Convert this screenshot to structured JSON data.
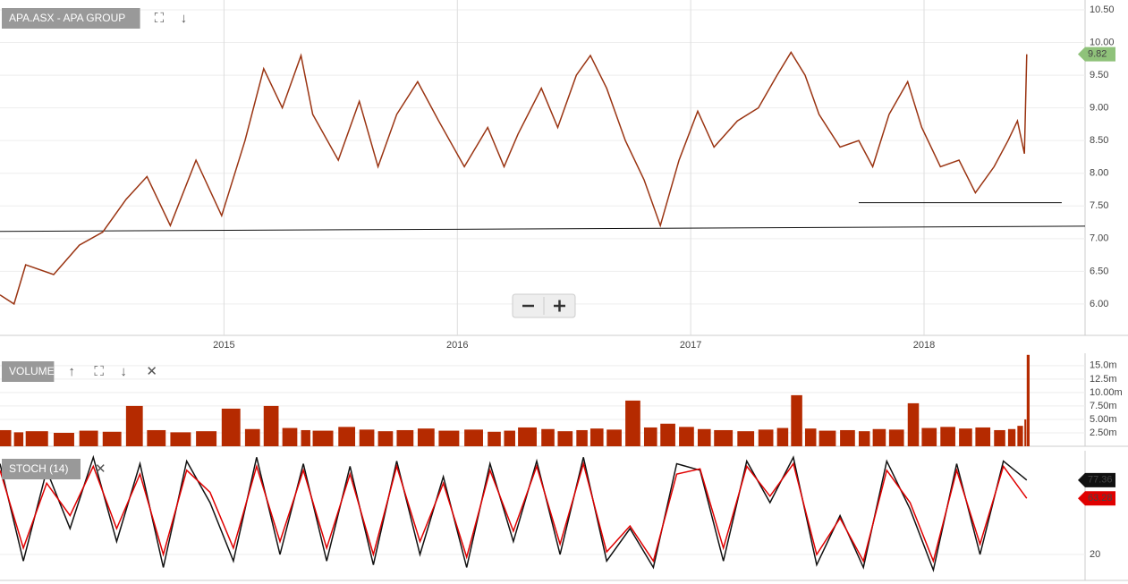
{
  "chart_data": [
    {
      "type": "line",
      "title": "APA.ASX - APA GROUP",
      "color": "#9a3412",
      "x": [
        2014.04,
        2014.1,
        2014.15,
        2014.27,
        2014.38,
        2014.48,
        2014.58,
        2014.67,
        2014.77,
        2014.88,
        2014.99,
        2015.09,
        2015.17,
        2015.25,
        2015.33,
        2015.38,
        2015.49,
        2015.58,
        2015.66,
        2015.74,
        2015.83,
        2015.92,
        2016.03,
        2016.13,
        2016.2,
        2016.26,
        2016.36,
        2016.43,
        2016.51,
        2016.57,
        2016.64,
        2016.72,
        2016.8,
        2016.87,
        2016.95,
        2017.03,
        2017.1,
        2017.2,
        2017.29,
        2017.37,
        2017.43,
        2017.49,
        2017.55,
        2017.64,
        2017.72,
        2017.78,
        2017.85,
        2017.93,
        2017.99,
        2018.07,
        2018.15,
        2018.22,
        2018.3,
        2018.36,
        2018.4,
        2018.43,
        2018.44
      ],
      "values": [
        6.14,
        6.0,
        6.6,
        6.45,
        6.9,
        7.1,
        7.6,
        7.95,
        7.2,
        8.2,
        7.35,
        8.5,
        9.6,
        9.0,
        9.8,
        8.9,
        8.2,
        9.1,
        8.1,
        8.9,
        9.4,
        8.8,
        8.1,
        8.7,
        8.1,
        8.6,
        9.3,
        8.7,
        9.5,
        9.8,
        9.3,
        8.5,
        7.9,
        7.2,
        8.2,
        8.95,
        8.4,
        8.8,
        9.0,
        9.5,
        9.85,
        9.5,
        8.9,
        8.4,
        8.5,
        8.1,
        8.9,
        9.4,
        8.7,
        8.1,
        8.2,
        7.7,
        8.1,
        8.5,
        8.8,
        8.3,
        9.82
      ],
      "lines": [
        {
          "x": [
            2014.04,
            2018.69
          ],
          "y": [
            7.11,
            7.19
          ]
        },
        {
          "x": [
            2017.72,
            2018.59
          ],
          "y": [
            7.55,
            7.55
          ]
        }
      ],
      "xlim": [
        2014.04,
        2018.69
      ],
      "xticks": [
        2015,
        2016,
        2017,
        2018
      ],
      "ylim": [
        5.52,
        10.65
      ],
      "yticks": [
        {
          "value": 6,
          "label": "6.00"
        },
        {
          "value": 6.5,
          "label": "6.50"
        },
        {
          "value": 7,
          "label": "7.00"
        },
        {
          "value": 7.5,
          "label": "7.50"
        },
        {
          "value": 8,
          "label": "8.00"
        },
        {
          "value": 8.5,
          "label": "8.50"
        },
        {
          "value": 9,
          "label": "9.00"
        },
        {
          "value": 9.5,
          "label": "9.50"
        },
        {
          "value": 10,
          "label": "10.00"
        },
        {
          "value": 10.5,
          "label": "10.50"
        }
      ],
      "grid": true,
      "badge_color": "#8fc27a"
    },
    {
      "type": "bar",
      "title": "VOLUME",
      "color": "#b52a00",
      "x": [
        2014.04,
        2014.1,
        2014.15,
        2014.27,
        2014.38,
        2014.48,
        2014.58,
        2014.67,
        2014.77,
        2014.88,
        2014.99,
        2015.09,
        2015.17,
        2015.25,
        2015.33,
        2015.38,
        2015.49,
        2015.58,
        2015.66,
        2015.74,
        2015.83,
        2015.92,
        2016.03,
        2016.13,
        2016.2,
        2016.26,
        2016.36,
        2016.43,
        2016.51,
        2016.57,
        2016.64,
        2016.72,
        2016.8,
        2016.87,
        2016.95,
        2017.03,
        2017.1,
        2017.2,
        2017.29,
        2017.37,
        2017.43,
        2017.49,
        2017.55,
        2017.64,
        2017.72,
        2017.78,
        2017.85,
        2017.93,
        2017.99,
        2018.07,
        2018.15,
        2018.22,
        2018.3,
        2018.36,
        2018.4,
        2018.43,
        2018.44
      ],
      "values": [
        3.0,
        2.6,
        2.8,
        2.5,
        2.9,
        2.7,
        7.5,
        3.0,
        2.6,
        2.8,
        7.0,
        3.2,
        7.5,
        3.4,
        3.0,
        2.9,
        3.6,
        3.1,
        2.8,
        3.0,
        3.3,
        2.9,
        3.1,
        2.7,
        2.9,
        3.5,
        3.2,
        2.8,
        3.0,
        3.3,
        3.1,
        8.5,
        3.5,
        4.2,
        3.6,
        3.2,
        3.0,
        2.8,
        3.1,
        3.4,
        9.5,
        3.3,
        2.9,
        3.0,
        2.8,
        3.2,
        3.1,
        8.0,
        3.4,
        3.6,
        3.3,
        3.5,
        3.0,
        3.2,
        3.8,
        5.0,
        17.0
      ],
      "xlim": [
        2014.04,
        2018.69
      ],
      "ylim": [
        0,
        17.3
      ],
      "yticks": [
        {
          "value": 2.5,
          "label": "2.50m"
        },
        {
          "value": 5,
          "label": "5.00m"
        },
        {
          "value": 7.5,
          "label": "7.50m"
        },
        {
          "value": 10,
          "label": "10.00m"
        },
        {
          "value": 12.5,
          "label": "12.5m"
        },
        {
          "value": 15,
          "label": "15.0m"
        }
      ]
    },
    {
      "type": "line",
      "title": "STOCH (14)",
      "x": [
        2014.04,
        2014.14,
        2014.24,
        2014.34,
        2014.44,
        2014.54,
        2014.64,
        2014.74,
        2014.84,
        2014.94,
        2015.04,
        2015.14,
        2015.24,
        2015.34,
        2015.44,
        2015.54,
        2015.64,
        2015.74,
        2015.84,
        2015.94,
        2016.04,
        2016.14,
        2016.24,
        2016.34,
        2016.44,
        2016.54,
        2016.64,
        2016.74,
        2016.84,
        2016.94,
        2017.04,
        2017.14,
        2017.24,
        2017.34,
        2017.44,
        2017.54,
        2017.64,
        2017.74,
        2017.84,
        2017.94,
        2018.04,
        2018.14,
        2018.24,
        2018.34,
        2018.44
      ],
      "series": [
        {
          "color": "#111111",
          "values": [
            90,
            15,
            85,
            40,
            95,
            30,
            90,
            10,
            92,
            60,
            15,
            95,
            20,
            90,
            15,
            88,
            12,
            92,
            20,
            80,
            10,
            90,
            30,
            92,
            20,
            95,
            15,
            40,
            10,
            90,
            85,
            15,
            92,
            60,
            95,
            12,
            50,
            10,
            92,
            55,
            8,
            90,
            20,
            92,
            77.36
          ]
        },
        {
          "color": "#e00000",
          "values": [
            85,
            25,
            75,
            50,
            88,
            40,
            82,
            20,
            85,
            68,
            25,
            88,
            30,
            85,
            25,
            82,
            20,
            88,
            30,
            75,
            18,
            85,
            38,
            88,
            28,
            90,
            22,
            42,
            15,
            82,
            86,
            25,
            88,
            65,
            90,
            20,
            48,
            15,
            85,
            60,
            15,
            85,
            28,
            88,
            63.28
          ]
        }
      ],
      "xlim": [
        2014.04,
        2018.69
      ],
      "ylim": [
        0,
        100
      ],
      "yticks": [
        20
      ]
    }
  ]
}
